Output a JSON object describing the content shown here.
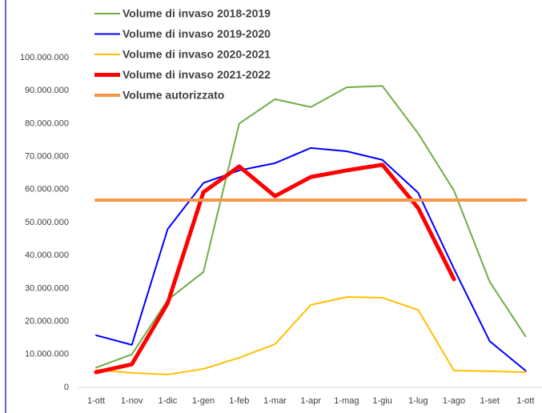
{
  "chart_data": {
    "type": "line",
    "categories": [
      "1-ott",
      "1-nov",
      "1-dic",
      "1-gen",
      "1-feb",
      "1-mar",
      "1-apr",
      "1-mag",
      "1-giu",
      "1-lug",
      "1-ago",
      "1-set",
      "1-ott"
    ],
    "series": [
      {
        "name": "Volume di invaso 2018-2019",
        "color": "#70ad47",
        "width": 2,
        "values": [
          6000000,
          10000000,
          26500000,
          35000000,
          80000000,
          87400000,
          85000000,
          91000000,
          91400000,
          77000000,
          59700000,
          32000000,
          15500000
        ]
      },
      {
        "name": "Volume di invaso 2019-2020",
        "color": "#0000ff",
        "width": 2,
        "values": [
          15800000,
          12900000,
          48000000,
          62000000,
          65800000,
          68000000,
          72600000,
          71600000,
          69000000,
          59000000,
          36000000,
          14000000,
          5100000
        ]
      },
      {
        "name": "Volume di invaso 2020-2021",
        "color": "#ffc000",
        "width": 2,
        "values": [
          5300000,
          4400000,
          3900000,
          5600000,
          9000000,
          13100000,
          25000000,
          27400000,
          27200000,
          23500000,
          5100000,
          4900000,
          4600000
        ]
      },
      {
        "name": "Volume di invaso 2021-2022",
        "color": "#ff0000",
        "width": 5,
        "values": [
          4600000,
          7000000,
          25500000,
          59200000,
          67000000,
          58000000,
          63800000,
          65800000,
          67500000,
          54400000,
          32800000,
          null,
          null
        ]
      },
      {
        "name": "Volume autorizzato",
        "color": "#f79646",
        "width": 4,
        "values": [
          56800000,
          56800000,
          56800000,
          56800000,
          56800000,
          56800000,
          56800000,
          56800000,
          56800000,
          56800000,
          56800000,
          56800000,
          56800000
        ]
      }
    ],
    "ylim": [
      0,
      100000000
    ],
    "yticks": [
      0,
      {
        "value": 10000000,
        "label": "10.000.000"
      },
      {
        "value": 20000000,
        "label": "20.000.000"
      },
      {
        "value": 30000000,
        "label": "30.000.000"
      },
      {
        "value": 40000000,
        "label": "40.000.000"
      },
      {
        "value": 50000000,
        "label": "50.000.000"
      },
      {
        "value": 60000000,
        "label": "60.000.000"
      },
      {
        "value": 70000000,
        "label": "70.000.000"
      },
      {
        "value": 80000000,
        "label": "80.000.000"
      },
      {
        "value": 90000000,
        "label": "90.000.000"
      },
      {
        "value": 100000000,
        "label": "100.000.000"
      }
    ],
    "grid": false,
    "legend": "top"
  }
}
